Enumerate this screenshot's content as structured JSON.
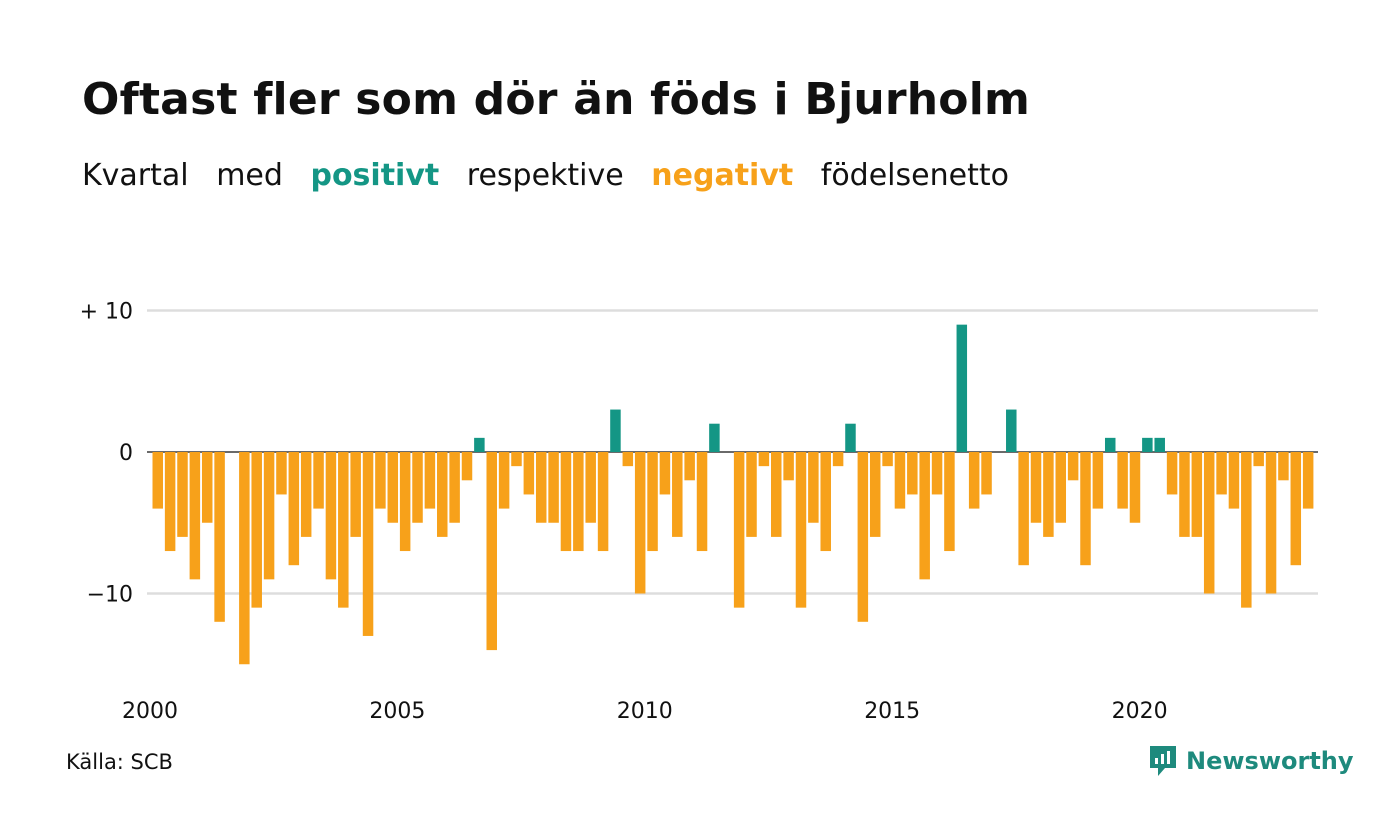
{
  "header": {
    "title": "Oftast fler som dör än föds i Bjurholm",
    "subtitle": {
      "part1": "Kvartal",
      "part2": "med",
      "positive": "positivt",
      "part3": "respektive",
      "negative": "negativt",
      "part4": "födelsenetto"
    }
  },
  "colors": {
    "positive": "#149685",
    "negative": "#f7a11a"
  },
  "chart_data": {
    "type": "bar",
    "xlabel": "",
    "ylabel": "",
    "ylim": [
      -15,
      10
    ],
    "grid": true,
    "yticks": [
      {
        "value": 10,
        "label": "+ 10"
      },
      {
        "value": 0,
        "label": "0"
      },
      {
        "value": -10,
        "label": "−10"
      }
    ],
    "xticks": [
      {
        "quarter_index": 0,
        "label": "2000"
      },
      {
        "quarter_index": 20,
        "label": "2005"
      },
      {
        "quarter_index": 40,
        "label": "2010"
      },
      {
        "quarter_index": 60,
        "label": "2015"
      },
      {
        "quarter_index": 80,
        "label": "2020"
      }
    ],
    "start": "2000 Q1",
    "end": "2023 Q2",
    "values": [
      -4,
      -7,
      -6,
      -9,
      -5,
      -12,
      0,
      -15,
      -11,
      -9,
      -3,
      -8,
      -6,
      -4,
      -9,
      -11,
      -6,
      -13,
      -4,
      -5,
      -7,
      -5,
      -4,
      -6,
      -5,
      -2,
      1,
      -14,
      -4,
      -1,
      -3,
      -5,
      -5,
      -7,
      -7,
      -5,
      -7,
      3,
      -1,
      -10,
      -7,
      -3,
      -6,
      -2,
      -7,
      2,
      0,
      -11,
      -6,
      -1,
      -6,
      -2,
      -11,
      -5,
      -7,
      -1,
      2,
      -12,
      -6,
      -1,
      -4,
      -3,
      -9,
      -3,
      -7,
      9,
      -4,
      -3,
      0,
      3,
      -8,
      -5,
      -6,
      -5,
      -2,
      -8,
      -4,
      1,
      -4,
      -5,
      1,
      1,
      -3,
      -6,
      -6,
      -10,
      -3,
      -4,
      -11,
      -1,
      -10,
      -2,
      -8,
      -4
    ]
  },
  "footer": {
    "source": "Källa: SCB",
    "brand": "Newsworthy"
  }
}
